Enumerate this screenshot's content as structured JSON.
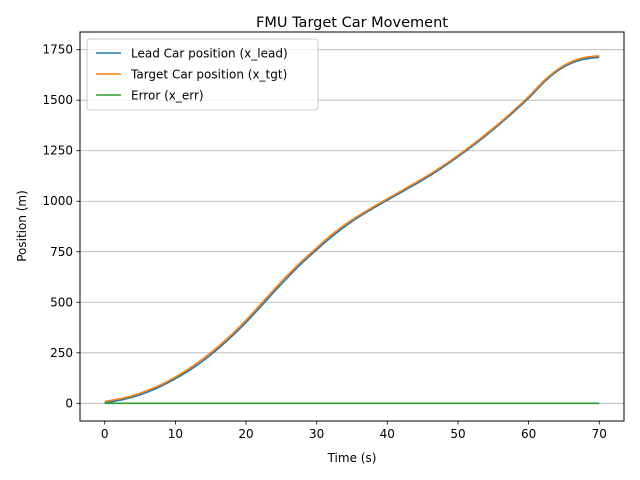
{
  "chart_data": {
    "type": "line",
    "title": "FMU Target Car Movement",
    "xlabel": "Time (s)",
    "ylabel": "Position (m)",
    "xlim": [
      -3.5,
      73.5
    ],
    "ylim": [
      -87.5,
      1837.5
    ],
    "xticks": [
      0,
      10,
      20,
      30,
      40,
      50,
      60,
      70
    ],
    "yticks": [
      0,
      250,
      500,
      750,
      1000,
      1250,
      1500,
      1750
    ],
    "grid": "horizontal",
    "legend_position": "top-left",
    "series": [
      {
        "name": "Lead Car position (x_lead)",
        "color": "#1f77b4",
        "x": [
          0,
          2.5,
          5,
          7.5,
          10,
          12.5,
          15,
          17.5,
          20,
          22.5,
          25,
          27.5,
          30,
          32.5,
          35,
          37.5,
          40,
          42.5,
          45,
          47.5,
          50,
          52.5,
          55,
          57.5,
          60,
          62.5,
          65,
          67.5,
          70
        ],
        "y": [
          2,
          18,
          42,
          77,
          122,
          175,
          240,
          315,
          400,
          495,
          590,
          680,
          760,
          835,
          900,
          955,
          1005,
          1055,
          1105,
          1160,
          1220,
          1285,
          1355,
          1430,
          1510,
          1600,
          1665,
          1700,
          1713
        ]
      },
      {
        "name": "Target Car position (x_tgt)",
        "color": "#ff7f0e",
        "x": [
          0,
          2.5,
          5,
          7.5,
          10,
          12.5,
          15,
          17.5,
          20,
          22.5,
          25,
          27.5,
          30,
          32.5,
          35,
          37.5,
          40,
          42.5,
          45,
          47.5,
          50,
          52.5,
          55,
          57.5,
          60,
          62.5,
          65,
          67.5,
          70
        ],
        "y": [
          10,
          25,
          50,
          85,
          130,
          185,
          250,
          325,
          412,
          507,
          602,
          690,
          770,
          845,
          908,
          962,
          1012,
          1062,
          1112,
          1167,
          1227,
          1292,
          1362,
          1437,
          1518,
          1607,
          1672,
          1708,
          1720
        ]
      },
      {
        "name": "Error (x_err)",
        "color": "#2ca02c",
        "x": [
          0,
          10,
          20,
          30,
          40,
          50,
          60,
          70
        ],
        "y": [
          0,
          0,
          0,
          0,
          0,
          0,
          0,
          0
        ]
      }
    ]
  }
}
